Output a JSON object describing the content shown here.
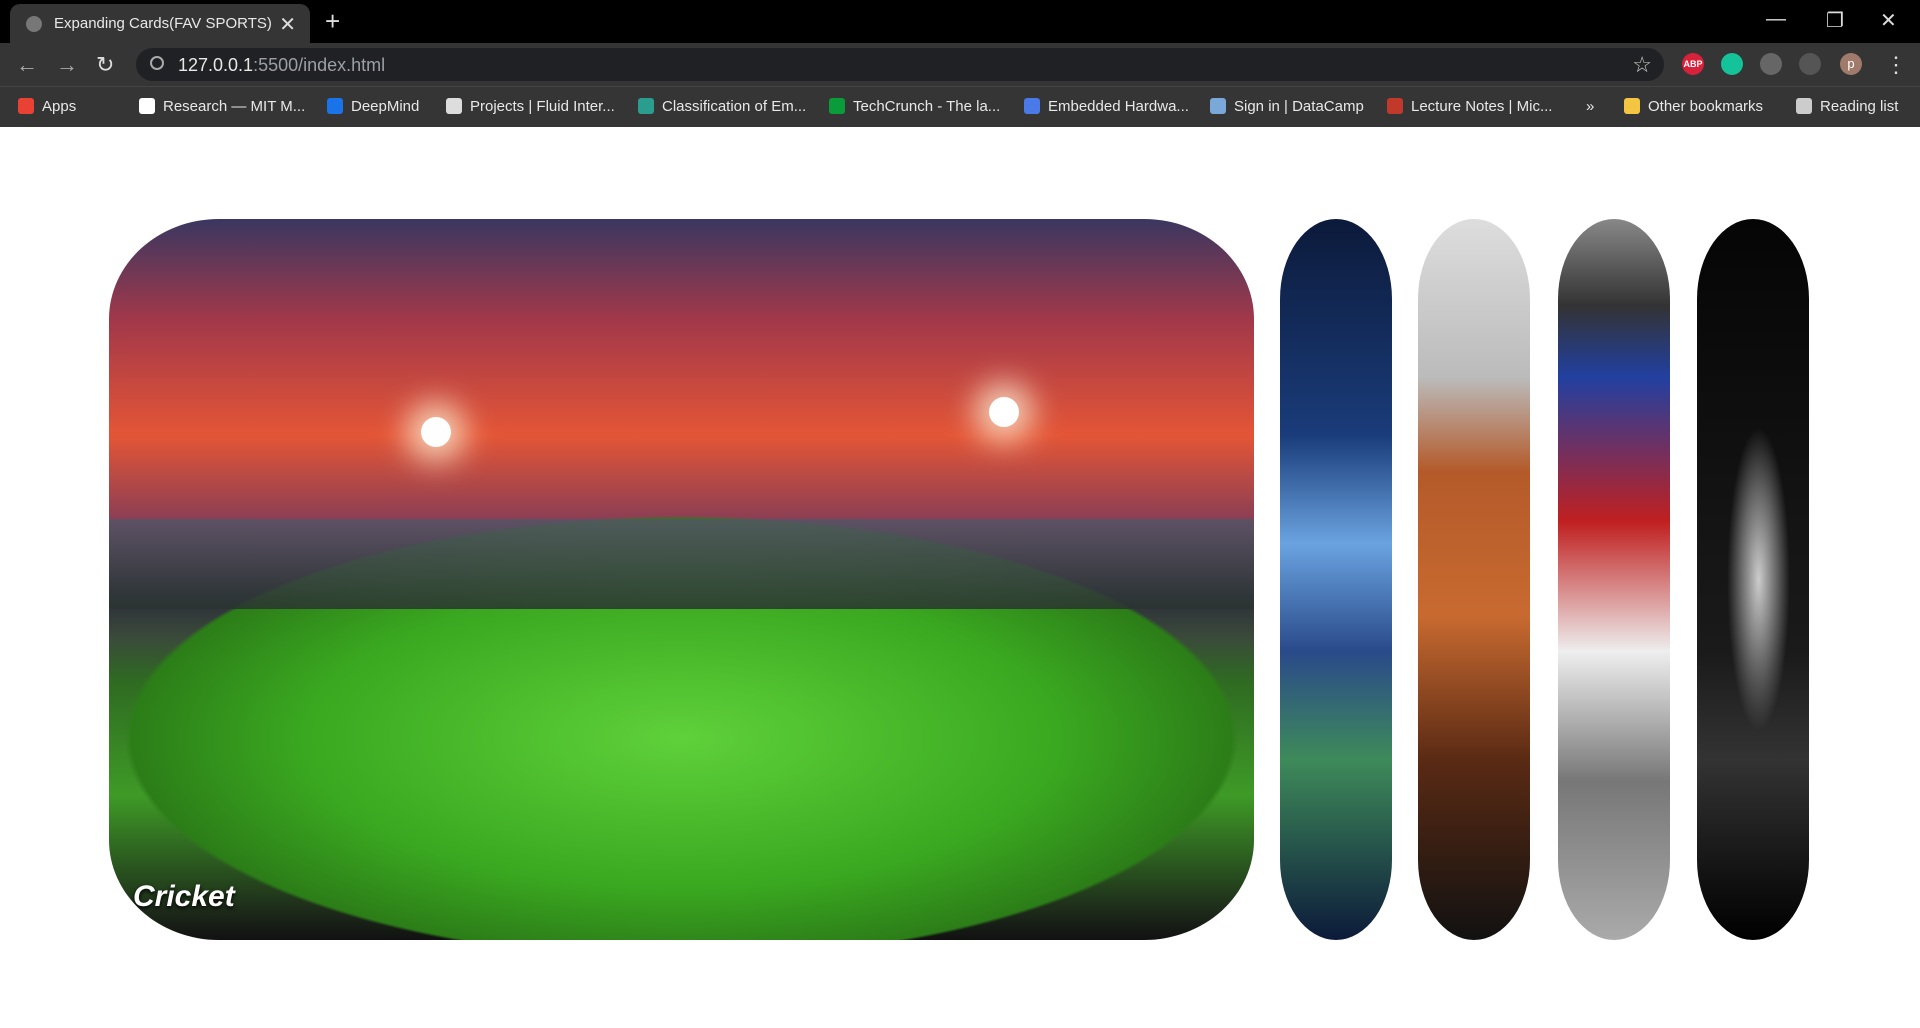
{
  "browser": {
    "tab_title": "Expanding Cards(FAV SPORTS)",
    "url_host": "127.0.0.1",
    "url_path": ":5500/index.html",
    "extension_label": "ABP",
    "profile_initial": "p",
    "bookmarks": [
      "Apps",
      "Research — MIT M...",
      "DeepMind",
      "Projects | Fluid Inter...",
      "Classification of Em...",
      "TechCrunch - The la...",
      "Embedded Hardwa...",
      "Sign in | DataCamp",
      "Lecture Notes | Mic..."
    ],
    "overflow": "»",
    "other_bookmarks": "Other bookmarks",
    "reading_list": "Reading list"
  },
  "cards": [
    {
      "label": "Cricket"
    }
  ]
}
